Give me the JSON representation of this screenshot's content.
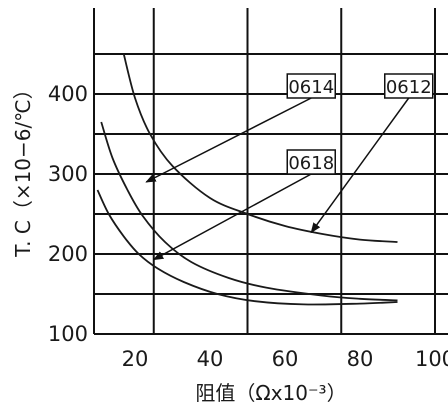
{
  "chart_data": {
    "type": "line",
    "title": "",
    "xlabel": "阻值（Ωx10⁻³）",
    "ylabel": "T. C（×10−6/℃）",
    "xlim": [
      0,
      100
    ],
    "ylim": [
      100,
      450
    ],
    "x_ticks": [
      20,
      40,
      60,
      80,
      100
    ],
    "y_ticks": [
      100,
      200,
      300,
      400
    ],
    "grid": true,
    "series": [
      {
        "name": "0612",
        "points": [
          [
            17,
            450
          ],
          [
            20,
            395
          ],
          [
            24,
            350
          ],
          [
            30,
            310
          ],
          [
            40,
            270
          ],
          [
            50,
            250
          ],
          [
            60,
            235
          ],
          [
            70,
            225
          ],
          [
            80,
            218
          ],
          [
            90,
            215
          ]
        ]
      },
      {
        "name": "0614",
        "points": [
          [
            11,
            365
          ],
          [
            14,
            320
          ],
          [
            18,
            280
          ],
          [
            22,
            248
          ],
          [
            28,
            215
          ],
          [
            35,
            190
          ],
          [
            45,
            170
          ],
          [
            55,
            158
          ],
          [
            70,
            148
          ],
          [
            80,
            144
          ],
          [
            90,
            142
          ]
        ]
      },
      {
        "name": "0618",
        "points": [
          [
            10,
            280
          ],
          [
            13,
            250
          ],
          [
            17,
            222
          ],
          [
            21,
            200
          ],
          [
            26,
            182
          ],
          [
            33,
            165
          ],
          [
            42,
            150
          ],
          [
            52,
            141
          ],
          [
            65,
            137
          ],
          [
            80,
            138
          ],
          [
            90,
            140
          ]
        ]
      }
    ],
    "annotations": [
      {
        "label": "0614",
        "box": [
          67,
          410
        ],
        "arrow_to": [
          23,
          290
        ]
      },
      {
        "label": "0618",
        "box": [
          67,
          315
        ],
        "arrow_to": [
          25,
          193
        ]
      },
      {
        "label": "0612",
        "box": [
          93,
          410
        ],
        "arrow_to": [
          67,
          227
        ]
      }
    ]
  }
}
